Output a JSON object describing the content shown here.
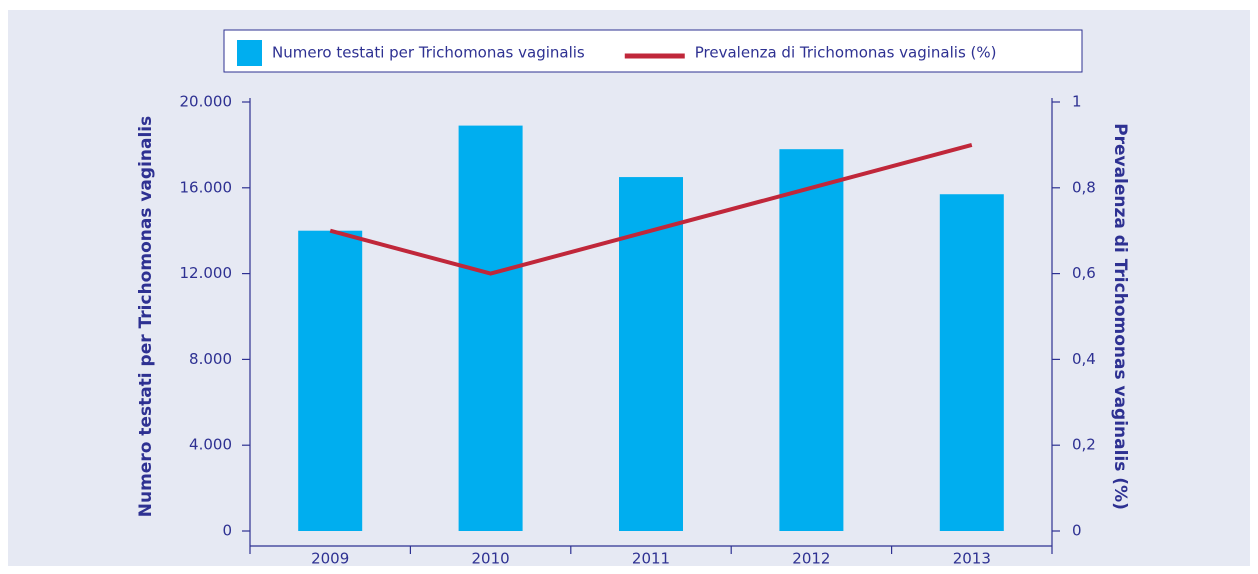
{
  "chart_data": {
    "type": "bar_line",
    "categories": [
      "2009",
      "2010",
      "2011",
      "2012",
      "2013"
    ],
    "series": [
      {
        "name": "Numero testati per Trichomonas vaginalis",
        "color": "#00aeef",
        "type": "bar",
        "values": [
          14000,
          18900,
          16500,
          17800,
          15700
        ]
      },
      {
        "name": "Prevalenza di Trichomonas vaginalis (%)",
        "color": "#c0273a",
        "type": "line",
        "axis": "y2",
        "values": [
          0.7,
          0.6,
          0.7,
          0.8,
          0.9
        ]
      }
    ],
    "y_label": "Numero testati per Trichomonas vaginalis",
    "y2_label": "Prevalenza di Trichomonas vaginalis (%)",
    "ylim": [
      0,
      20000
    ],
    "yticks": [
      0,
      {
        "value": 4000,
        "label": "4.000"
      },
      {
        "value": 8000,
        "label": "8.000"
      },
      {
        "value": 12000,
        "label": "12.000"
      },
      {
        "value": 16000,
        "label": "16.000"
      },
      {
        "value": 20000,
        "label": "20.000"
      }
    ],
    "y2lim": [
      0,
      1
    ],
    "y2ticks": [
      0,
      {
        "value": 0.2,
        "label": "0,2"
      },
      {
        "value": 0.4,
        "label": "0,4"
      },
      {
        "value": 0.6,
        "label": "0,6"
      },
      {
        "value": 0.8,
        "label": "0,8"
      },
      1
    ],
    "legend": "top"
  }
}
